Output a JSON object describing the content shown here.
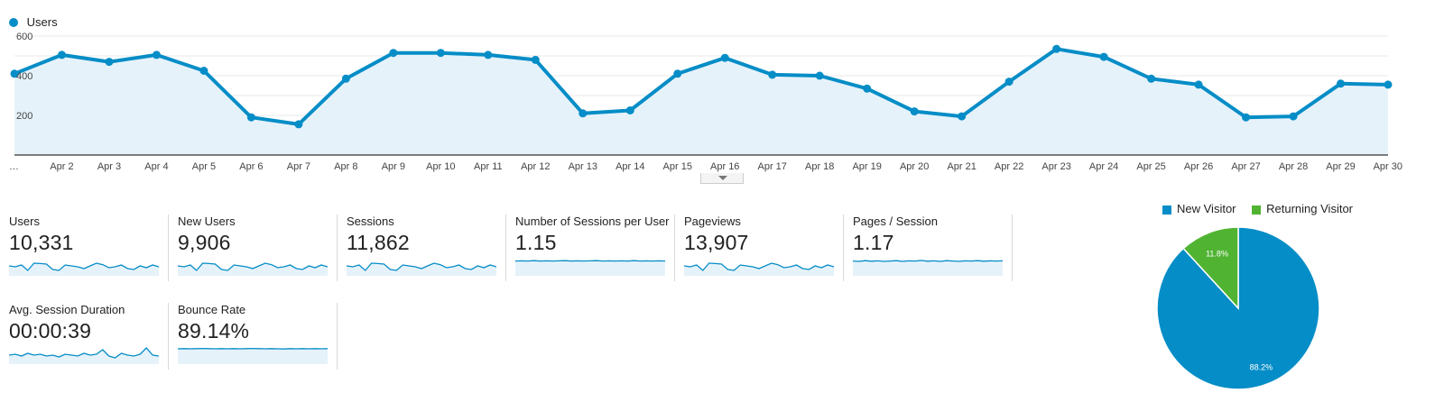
{
  "chart_data": [
    {
      "type": "area",
      "series": [
        {
          "name": "Users",
          "x": [
            "…",
            "Apr 2",
            "Apr 3",
            "Apr 4",
            "Apr 5",
            "Apr 6",
            "Apr 7",
            "Apr 8",
            "Apr 9",
            "Apr 10",
            "Apr 11",
            "Apr 12",
            "Apr 13",
            "Apr 14",
            "Apr 15",
            "Apr 16",
            "Apr 17",
            "Apr 18",
            "Apr 19",
            "Apr 20",
            "Apr 21",
            "Apr 22",
            "Apr 23",
            "Apr 24",
            "Apr 25",
            "Apr 26",
            "Apr 27",
            "Apr 28",
            "Apr 29",
            "Apr 30"
          ],
          "values": [
            410,
            505,
            470,
            505,
            425,
            190,
            155,
            385,
            515,
            515,
            505,
            480,
            210,
            225,
            410,
            490,
            405,
            400,
            335,
            220,
            195,
            370,
            535,
            495,
            385,
            355,
            190,
            195,
            360,
            355
          ]
        }
      ],
      "yticks": [
        200,
        400,
        600
      ],
      "ylim": [
        0,
        600
      ],
      "color": "#058dc7",
      "fill": "#e6f2fa",
      "grid": true,
      "legend_position": "top-left"
    },
    {
      "type": "pie",
      "labels": [
        "New Visitor",
        "Returning Visitor"
      ],
      "values": [
        88.2,
        11.8
      ],
      "value_labels": [
        "88.2%",
        "11.8%"
      ],
      "colors": [
        "#058dc7",
        "#50b432"
      ],
      "legend_position": "top"
    }
  ],
  "legend": {
    "users_label": "Users"
  },
  "metrics": [
    {
      "label": "Users",
      "value": "10,331",
      "spark": [
        0.55,
        0.5,
        0.6,
        0.3,
        0.7,
        0.68,
        0.65,
        0.35,
        0.3,
        0.6,
        0.55,
        0.5,
        0.4,
        0.55,
        0.7,
        0.62,
        0.45,
        0.5,
        0.6,
        0.4,
        0.35,
        0.55,
        0.45,
        0.6,
        0.5
      ]
    },
    {
      "label": "New Users",
      "value": "9,906",
      "spark": [
        0.55,
        0.5,
        0.6,
        0.3,
        0.7,
        0.68,
        0.65,
        0.35,
        0.3,
        0.6,
        0.55,
        0.5,
        0.4,
        0.55,
        0.7,
        0.62,
        0.45,
        0.5,
        0.6,
        0.4,
        0.35,
        0.55,
        0.45,
        0.6,
        0.5
      ]
    },
    {
      "label": "Sessions",
      "value": "11,862",
      "spark": [
        0.55,
        0.5,
        0.6,
        0.3,
        0.7,
        0.68,
        0.65,
        0.35,
        0.3,
        0.6,
        0.55,
        0.5,
        0.4,
        0.55,
        0.7,
        0.62,
        0.45,
        0.5,
        0.6,
        0.4,
        0.35,
        0.55,
        0.45,
        0.6,
        0.5
      ]
    },
    {
      "label": "Number of Sessions per User",
      "value": "1.15",
      "spark": [
        0.82,
        0.83,
        0.82,
        0.84,
        0.82,
        0.83,
        0.82,
        0.83,
        0.84,
        0.82,
        0.83,
        0.82,
        0.83,
        0.84,
        0.82,
        0.83,
        0.82,
        0.83,
        0.82,
        0.84,
        0.82,
        0.83,
        0.82,
        0.83,
        0.82
      ]
    },
    {
      "label": "Pageviews",
      "value": "13,907",
      "spark": [
        0.55,
        0.5,
        0.6,
        0.3,
        0.7,
        0.68,
        0.65,
        0.35,
        0.3,
        0.6,
        0.55,
        0.5,
        0.4,
        0.55,
        0.7,
        0.62,
        0.45,
        0.5,
        0.6,
        0.4,
        0.35,
        0.55,
        0.45,
        0.6,
        0.5
      ]
    },
    {
      "label": "Pages / Session",
      "value": "1.17",
      "spark": [
        0.82,
        0.8,
        0.84,
        0.81,
        0.83,
        0.8,
        0.82,
        0.84,
        0.8,
        0.83,
        0.82,
        0.85,
        0.81,
        0.83,
        0.8,
        0.84,
        0.82,
        0.8,
        0.83,
        0.82,
        0.84,
        0.81,
        0.83,
        0.82,
        0.83
      ]
    },
    {
      "label": "Avg. Session Duration",
      "value": "00:00:39",
      "spark": [
        0.5,
        0.55,
        0.45,
        0.6,
        0.5,
        0.55,
        0.45,
        0.5,
        0.4,
        0.55,
        0.5,
        0.45,
        0.6,
        0.5,
        0.55,
        0.8,
        0.45,
        0.35,
        0.6,
        0.5,
        0.45,
        0.55,
        0.9,
        0.5,
        0.45
      ]
    },
    {
      "label": "Bounce Rate",
      "value": "89.14%",
      "spark": [
        0.85,
        0.86,
        0.85,
        0.86,
        0.87,
        0.86,
        0.85,
        0.86,
        0.85,
        0.86,
        0.85,
        0.86,
        0.87,
        0.86,
        0.85,
        0.86,
        0.85,
        0.84,
        0.86,
        0.85,
        0.86,
        0.85,
        0.86,
        0.85,
        0.86
      ]
    }
  ]
}
